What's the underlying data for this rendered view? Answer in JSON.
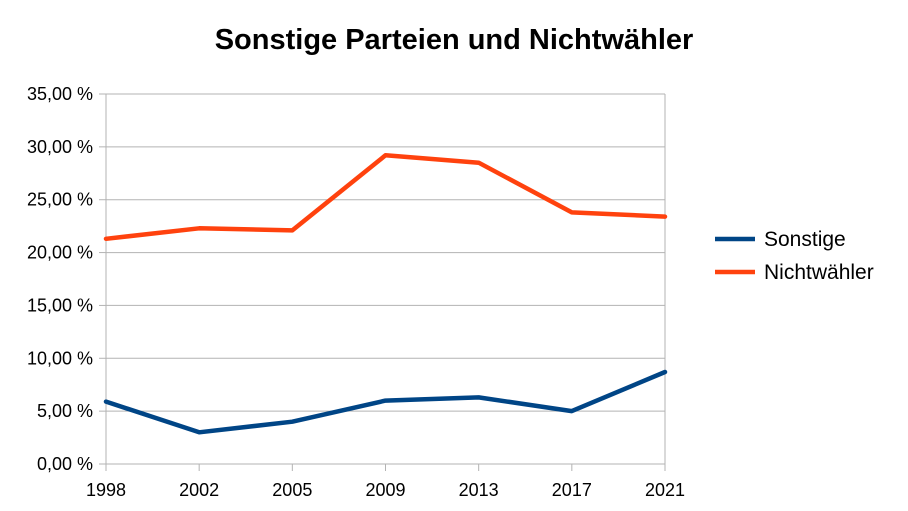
{
  "chart_data": {
    "type": "line",
    "title": "Sonstige Parteien und Nichtwähler",
    "xlabel": "",
    "ylabel": "",
    "categories": [
      "1998",
      "2002",
      "2005",
      "2009",
      "2013",
      "2017",
      "2021"
    ],
    "ylim": [
      0,
      35
    ],
    "ytick_values": [
      0,
      5,
      10,
      15,
      20,
      25,
      30,
      35
    ],
    "ytick_labels": [
      "0,00 %",
      "5,00 %",
      "10,00 %",
      "15,00 %",
      "20,00 %",
      "25,00 %",
      "30,00 %",
      "35,00 %"
    ],
    "grid": true,
    "legend_position": "right",
    "series": [
      {
        "name": "Sonstige",
        "color": "#004586",
        "values": [
          5.9,
          3.0,
          4.0,
          6.0,
          6.3,
          5.0,
          8.7
        ]
      },
      {
        "name": "Nichtwähler",
        "color": "#ff420e",
        "values": [
          21.3,
          22.3,
          22.1,
          29.2,
          28.5,
          23.8,
          23.4
        ]
      }
    ]
  }
}
